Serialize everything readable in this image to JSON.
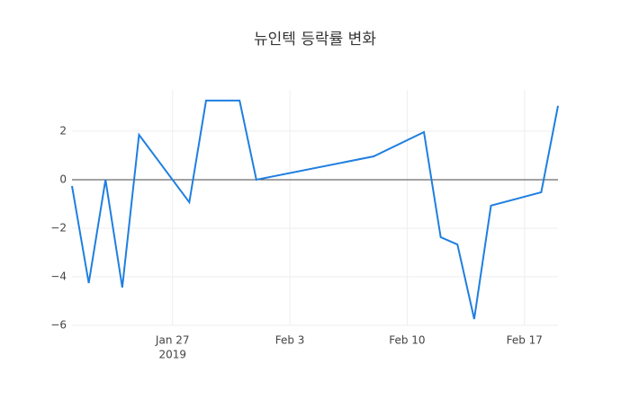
{
  "chart_data": {
    "type": "line",
    "title": "뉴인텍 등락률 변화",
    "x": [
      "2019-01-21",
      "2019-01-22",
      "2019-01-23",
      "2019-01-24",
      "2019-01-25",
      "2019-01-28",
      "2019-01-29",
      "2019-01-31",
      "2019-02-01",
      "2019-02-08",
      "2019-02-11",
      "2019-02-12",
      "2019-02-13",
      "2019-02-14",
      "2019-02-15",
      "2019-02-18",
      "2019-02-19"
    ],
    "series": [
      {
        "color": "#1f7fe0",
        "values": [
          -0.26,
          -4.26,
          0,
          -4.44,
          1.85,
          -0.93,
          3.26,
          3.26,
          0,
          0.96,
          1.96,
          -2.37,
          -2.67,
          -5.74,
          -1.07,
          -0.52,
          3.04
        ]
      }
    ],
    "xlim": [
      "2019-01-21",
      "2019-02-19"
    ],
    "xticks": [
      {
        "value": "2019-01-27",
        "label": "Jan 27"
      },
      {
        "value": "2019-02-03",
        "label": "Feb 3"
      },
      {
        "value": "2019-02-10",
        "label": "Feb 10"
      },
      {
        "value": "2019-02-17",
        "label": "Feb 17"
      }
    ],
    "x_year_label": "2019",
    "ylim": [
      -6,
      3.7
    ],
    "yticks": [
      {
        "value": -6,
        "label": "−6"
      },
      {
        "value": -4,
        "label": "−4"
      },
      {
        "value": -2,
        "label": "−2"
      },
      0,
      2
    ],
    "grid": true,
    "zeroline": true
  }
}
